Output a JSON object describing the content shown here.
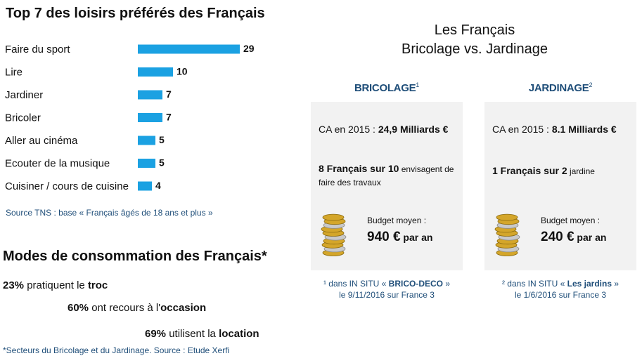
{
  "left": {
    "title": "Top 7 des loisirs préférés des Français",
    "source": "Source TNS : base « Français âgés de 18 ans et plus »"
  },
  "chart_data": {
    "type": "bar",
    "orientation": "horizontal",
    "categories": [
      "Faire du sport",
      "Lire",
      "Jardiner",
      "Bricoler",
      "Aller au cinéma",
      "Ecouter de la musique",
      "Cuisiner / cours de cuisine"
    ],
    "values": [
      29,
      10,
      7,
      7,
      5,
      5,
      4
    ],
    "bar_color": "#1ba1e2",
    "title": "",
    "xlabel": "",
    "ylabel": "",
    "grid": false
  },
  "modes": {
    "title": "Modes de consommation des Français*",
    "lines": [
      {
        "pct": "23%",
        "text": " pratiquent le ",
        "strong": "troc"
      },
      {
        "pct": "60%",
        "text": " ont recours à l'",
        "strong": "occasion"
      },
      {
        "pct": "69%",
        "text": " utilisent la ",
        "strong": "location"
      }
    ],
    "footnote": "*Secteurs du Bricolage et du Jardinage. Source : Etude Xerfi"
  },
  "comparison": {
    "title_line1": "Les Français",
    "title_line2": "Bricolage vs. Jardinage",
    "panels": [
      {
        "heading": "BRICOLAGE",
        "sup": "1",
        "ca_label": "CA en 2015 : ",
        "ca_value": "24,9 Milliards €",
        "stat_bold": "8 Français sur 10",
        "stat_rest": " envisagent de faire des travaux",
        "budget_label": "Budget moyen :",
        "budget_value": "940 €",
        "budget_unit": " par an",
        "note_pre": "¹ dans IN SITU « ",
        "note_bold": "BRICO-DECO",
        "note_post": " »",
        "note_line2": "le 9/11/2016 sur France 3"
      },
      {
        "heading": "JARDINAGE",
        "sup": "2",
        "ca_label": "CA en 2015 : ",
        "ca_value": "8.1 Milliards €",
        "stat_bold": "1 Français sur 2",
        "stat_rest": " jardine",
        "budget_label": "Budget moyen :",
        "budget_value": "240 €",
        "budget_unit": " par an",
        "note_pre": "² dans IN SITU « ",
        "note_bold": "Les jardins",
        "note_post": " »",
        "note_line2": "le 1/6/2016 sur France 3"
      }
    ],
    "icon": "coin-stack-icon",
    "accent": "#1f4e79",
    "panel_bg": "#f2f2f2"
  }
}
